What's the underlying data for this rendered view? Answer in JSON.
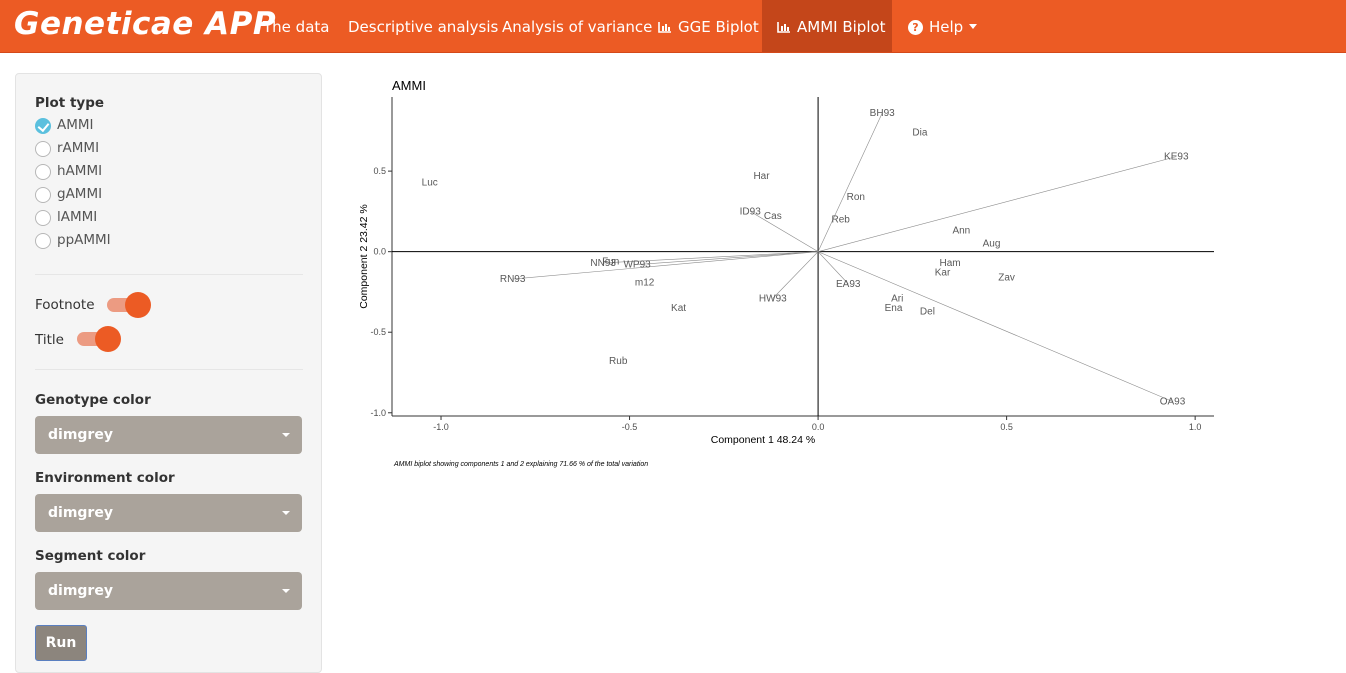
{
  "navbar": {
    "brand": "Geneticae APP",
    "items": [
      {
        "label": "The data"
      },
      {
        "label": "Descriptive analysis"
      },
      {
        "label": "Analysis of variance"
      },
      {
        "label": "GGE Biplot",
        "icon": "bar-chart-icon"
      },
      {
        "label": "AMMI Biplot",
        "icon": "bar-chart-icon",
        "active": true
      },
      {
        "label": "Help",
        "icon": "question-circle-icon",
        "dropdown": true
      }
    ],
    "color": "#ec5b24",
    "active_color": "#c4461a"
  },
  "sidebar": {
    "plot_type_label": "Plot type",
    "plot_types": [
      "AMMI",
      "rAMMI",
      "hAMMI",
      "gAMMI",
      "lAMMI",
      "ppAMMI"
    ],
    "selected_plot_type": "AMMI",
    "footnote_label": "Footnote",
    "footnote_on": true,
    "title_label": "Title",
    "title_on": true,
    "genotype_color_label": "Genotype color",
    "genotype_color": "dimgrey",
    "environment_color_label": "Environment color",
    "environment_color": "dimgrey",
    "segment_color_label": "Segment color",
    "segment_color": "dimgrey",
    "run_label": "Run"
  },
  "chart_data": {
    "type": "scatter",
    "title": "AMMI",
    "xlabel": "Component 1 48.24 %",
    "ylabel": "Component 2 23.42 %",
    "footnote": "AMMI biplot showing components 1 and 2 explaining  71.66 % of the total variation",
    "xlim": [
      -1.13,
      1.05
    ],
    "ylim": [
      -1.02,
      0.96
    ],
    "x_ticks": [
      -1.0,
      -0.5,
      0.0,
      0.5,
      1.0
    ],
    "x_tick_labels": [
      "-1.0",
      "-0.5",
      "0.0",
      "0.5",
      "1.0"
    ],
    "y_ticks": [
      -1.0,
      -0.5,
      0.0,
      0.5
    ],
    "y_tick_labels": [
      "-1.0",
      "-0.5",
      "0.0",
      "0.5"
    ],
    "grid": false,
    "genotypes": [
      {
        "label": "Luc",
        "x": -1.03,
        "y": 0.43
      },
      {
        "label": "Dia",
        "x": 0.27,
        "y": 0.74
      },
      {
        "label": "Har",
        "x": -0.15,
        "y": 0.47
      },
      {
        "label": "Ron",
        "x": 0.1,
        "y": 0.34
      },
      {
        "label": "Cas",
        "x": -0.12,
        "y": 0.22
      },
      {
        "label": "Reb",
        "x": 0.06,
        "y": 0.2
      },
      {
        "label": "Ann",
        "x": 0.38,
        "y": 0.13
      },
      {
        "label": "Aug",
        "x": 0.46,
        "y": 0.05
      },
      {
        "label": "Ham",
        "x": 0.35,
        "y": -0.07
      },
      {
        "label": "Kar",
        "x": 0.33,
        "y": -0.13
      },
      {
        "label": "Zav",
        "x": 0.5,
        "y": -0.16
      },
      {
        "label": "Fun",
        "x": -0.55,
        "y": -0.06
      },
      {
        "label": "m12",
        "x": -0.46,
        "y": -0.19
      },
      {
        "label": "Kat",
        "x": -0.37,
        "y": -0.35
      },
      {
        "label": "Ari",
        "x": 0.21,
        "y": -0.29
      },
      {
        "label": "Ena",
        "x": 0.2,
        "y": -0.35
      },
      {
        "label": "Del",
        "x": 0.29,
        "y": -0.37
      },
      {
        "label": "Rub",
        "x": -0.53,
        "y": -0.68
      }
    ],
    "environments": [
      {
        "label": "BH93",
        "x": 0.17,
        "y": 0.86
      },
      {
        "label": "KE93",
        "x": 0.95,
        "y": 0.59
      },
      {
        "label": "ID93",
        "x": -0.18,
        "y": 0.25
      },
      {
        "label": "NN93",
        "x": -0.57,
        "y": -0.07
      },
      {
        "label": "WP93",
        "x": -0.48,
        "y": -0.08
      },
      {
        "label": "RN93",
        "x": -0.81,
        "y": -0.17
      },
      {
        "label": "EA93",
        "x": 0.08,
        "y": -0.2
      },
      {
        "label": "HW93",
        "x": -0.12,
        "y": -0.29
      },
      {
        "label": "OA93",
        "x": 0.94,
        "y": -0.93
      }
    ]
  }
}
